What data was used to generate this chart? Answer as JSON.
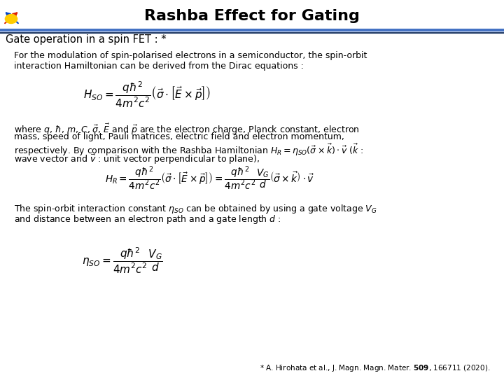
{
  "title": "Rashba Effect for Gating",
  "subtitle": "Gate operation in a spin FET : *",
  "background_color": "#ffffff",
  "title_color": "#000000",
  "title_fontsize": 16,
  "subtitle_fontsize": 10.5,
  "body_fontsize": 9,
  "eq_fontsize": 11,
  "header_line_color1": "#4472c4",
  "header_line_color2": "#1f3864",
  "footer_text": "* A. Hirohata et al., J. Magn. Magn. Mater. $\\mathbf{509}$, 166711 (2020).",
  "para1": "For the modulation of spin-polarised electrons in a semiconductor, the spin-orbit\ninteraction Hamiltonian can be derived from the Dirac equations :",
  "eq1": "$H_{SO} = \\dfrac{q\\hbar^2}{4m^2c^2}\\left(\\vec{\\sigma} \\cdot \\left[\\vec{E}\\times\\vec{p}\\right]\\right)$",
  "para2_line1": "where $q$, $\\hbar$, $m$, $C$, $\\vec{\\sigma}$, $\\vec{E}$ and $\\vec{p}$ are the electron charge, Planck constant, electron",
  "para2_line2": "mass, speed of light, Pauli matrices, electric field and electron momentum,",
  "para2_line3": "respectively. By comparison with the Rashba Hamiltonian $H_R = \\eta_{SO}(\\vec{\\sigma}\\times\\vec{k})\\cdot\\vec{v}$ ($\\vec{k}$ :",
  "para2_line4": "wave vector and $\\vec{v}$ : unit vector perpendicular to plane),",
  "eq2": "$H_R = \\dfrac{q\\hbar^2}{4m^2c^2}\\left(\\vec{\\sigma} \\cdot \\left[\\vec{E}\\times\\vec{p}\\right]\\right) = \\dfrac{q\\hbar^2}{4m^2c^2}\\dfrac{V_G}{d}\\left(\\vec{\\sigma}\\times\\vec{k}\\right)\\cdot\\vec{v}$",
  "para3_line1": "The spin-orbit interaction constant $\\eta_{SO}$ can be obtained by using a gate voltage $V_G$",
  "para3_line2": "and distance between an electron path and a gate length $d$ :",
  "eq3": "$\\eta_{SO} = \\dfrac{q\\hbar^2}{4m^2c^2}\\dfrac{V_G}{d}$"
}
